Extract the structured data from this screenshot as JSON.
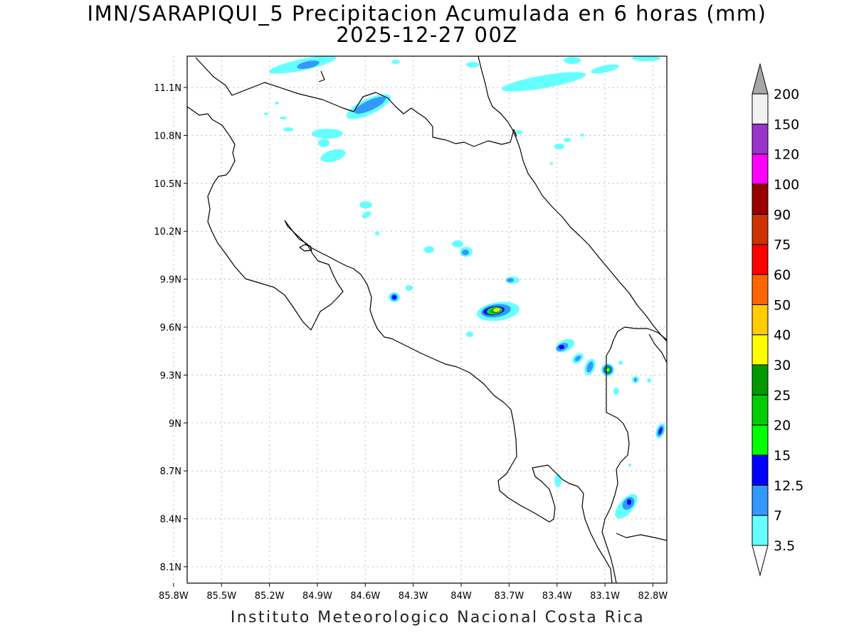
{
  "title": {
    "line1": "IMN/SARAPIQUI_5 Precipitacion Acumulada en 6 horas (mm)",
    "line2": "2025-12-27 00Z"
  },
  "footer": "Instituto Meteorologico Nacional Costa Rica",
  "map": {
    "lon_range": [
      -86.0,
      -82.5
    ],
    "lat_range": [
      8.0,
      11.3
    ],
    "lon_ticks": [
      {
        "value": -85.8,
        "label": "85.8W"
      },
      {
        "value": -85.5,
        "label": "85.5W"
      },
      {
        "value": -85.2,
        "label": "85.2W"
      },
      {
        "value": -84.9,
        "label": "84.9W"
      },
      {
        "value": -84.6,
        "label": "84.6W"
      },
      {
        "value": -84.3,
        "label": "84.3W"
      },
      {
        "value": -84.0,
        "label": "84W"
      },
      {
        "value": -83.7,
        "label": "83.7W"
      },
      {
        "value": -83.4,
        "label": "83.4W"
      },
      {
        "value": -83.1,
        "label": "83.1W"
      },
      {
        "value": -82.8,
        "label": "82.8W"
      }
    ],
    "lat_ticks": [
      {
        "value": 11.1,
        "label": "11.1N"
      },
      {
        "value": 10.8,
        "label": "10.8N"
      },
      {
        "value": 10.5,
        "label": "10.5N"
      },
      {
        "value": 10.2,
        "label": "10.2N"
      },
      {
        "value": 9.9,
        "label": "9.9N"
      },
      {
        "value": 9.6,
        "label": "9.6N"
      },
      {
        "value": 9.3,
        "label": "9.3N"
      },
      {
        "value": 9.0,
        "label": "9N"
      },
      {
        "value": 8.7,
        "label": "8.7N"
      },
      {
        "value": 8.4,
        "label": "8.4N"
      },
      {
        "value": 8.1,
        "label": "8.1N"
      }
    ],
    "grid": true
  },
  "colorbar": {
    "levels": [
      {
        "label": "3.5",
        "color": "#66ffff"
      },
      {
        "label": "7",
        "color": "#3399ff"
      },
      {
        "label": "12.5",
        "color": "#0000ff"
      },
      {
        "label": "15",
        "color": "#00ff00"
      },
      {
        "label": "20",
        "color": "#00cc00"
      },
      {
        "label": "25",
        "color": "#009900"
      },
      {
        "label": "30",
        "color": "#ffff00"
      },
      {
        "label": "40",
        "color": "#ffcc00"
      },
      {
        "label": "50",
        "color": "#ff6600"
      },
      {
        "label": "60",
        "color": "#ff0000"
      },
      {
        "label": "75",
        "color": "#cc3300"
      },
      {
        "label": "90",
        "color": "#990000"
      },
      {
        "label": "100",
        "color": "#ff00ff"
      },
      {
        "label": "120",
        "color": "#9933cc"
      },
      {
        "label": "150",
        "color": "#f2f2f2"
      },
      {
        "label": "200",
        "color": "#a6a6a6"
      }
    ],
    "below_color": "#ffffff"
  },
  "precip_cells": [
    {
      "lon": -84.9,
      "lat": 11.22,
      "level": 1
    },
    {
      "lon": -84.6,
      "lat": 11.04,
      "level": 1
    },
    {
      "lon": -84.8,
      "lat": 10.78,
      "level": 0
    },
    {
      "lon": -84.6,
      "lat": 10.35,
      "level": 0
    },
    {
      "lon": -83.97,
      "lat": 10.08,
      "level": 1
    },
    {
      "lon": -84.47,
      "lat": 9.79,
      "level": 2
    },
    {
      "lon": -83.74,
      "lat": 9.71,
      "level": 6
    },
    {
      "lon": -83.24,
      "lat": 9.49,
      "level": 2
    },
    {
      "lon": -82.91,
      "lat": 9.34,
      "level": 5
    },
    {
      "lon": -82.57,
      "lat": 8.94,
      "level": 2
    },
    {
      "lon": -82.84,
      "lat": 8.5,
      "level": 2
    },
    {
      "lon": -83.28,
      "lat": 8.64,
      "level": 0
    },
    {
      "lon": -83.55,
      "lat": 11.1,
      "level": 0
    },
    {
      "lon": -82.9,
      "lat": 11.2,
      "level": 0
    }
  ]
}
